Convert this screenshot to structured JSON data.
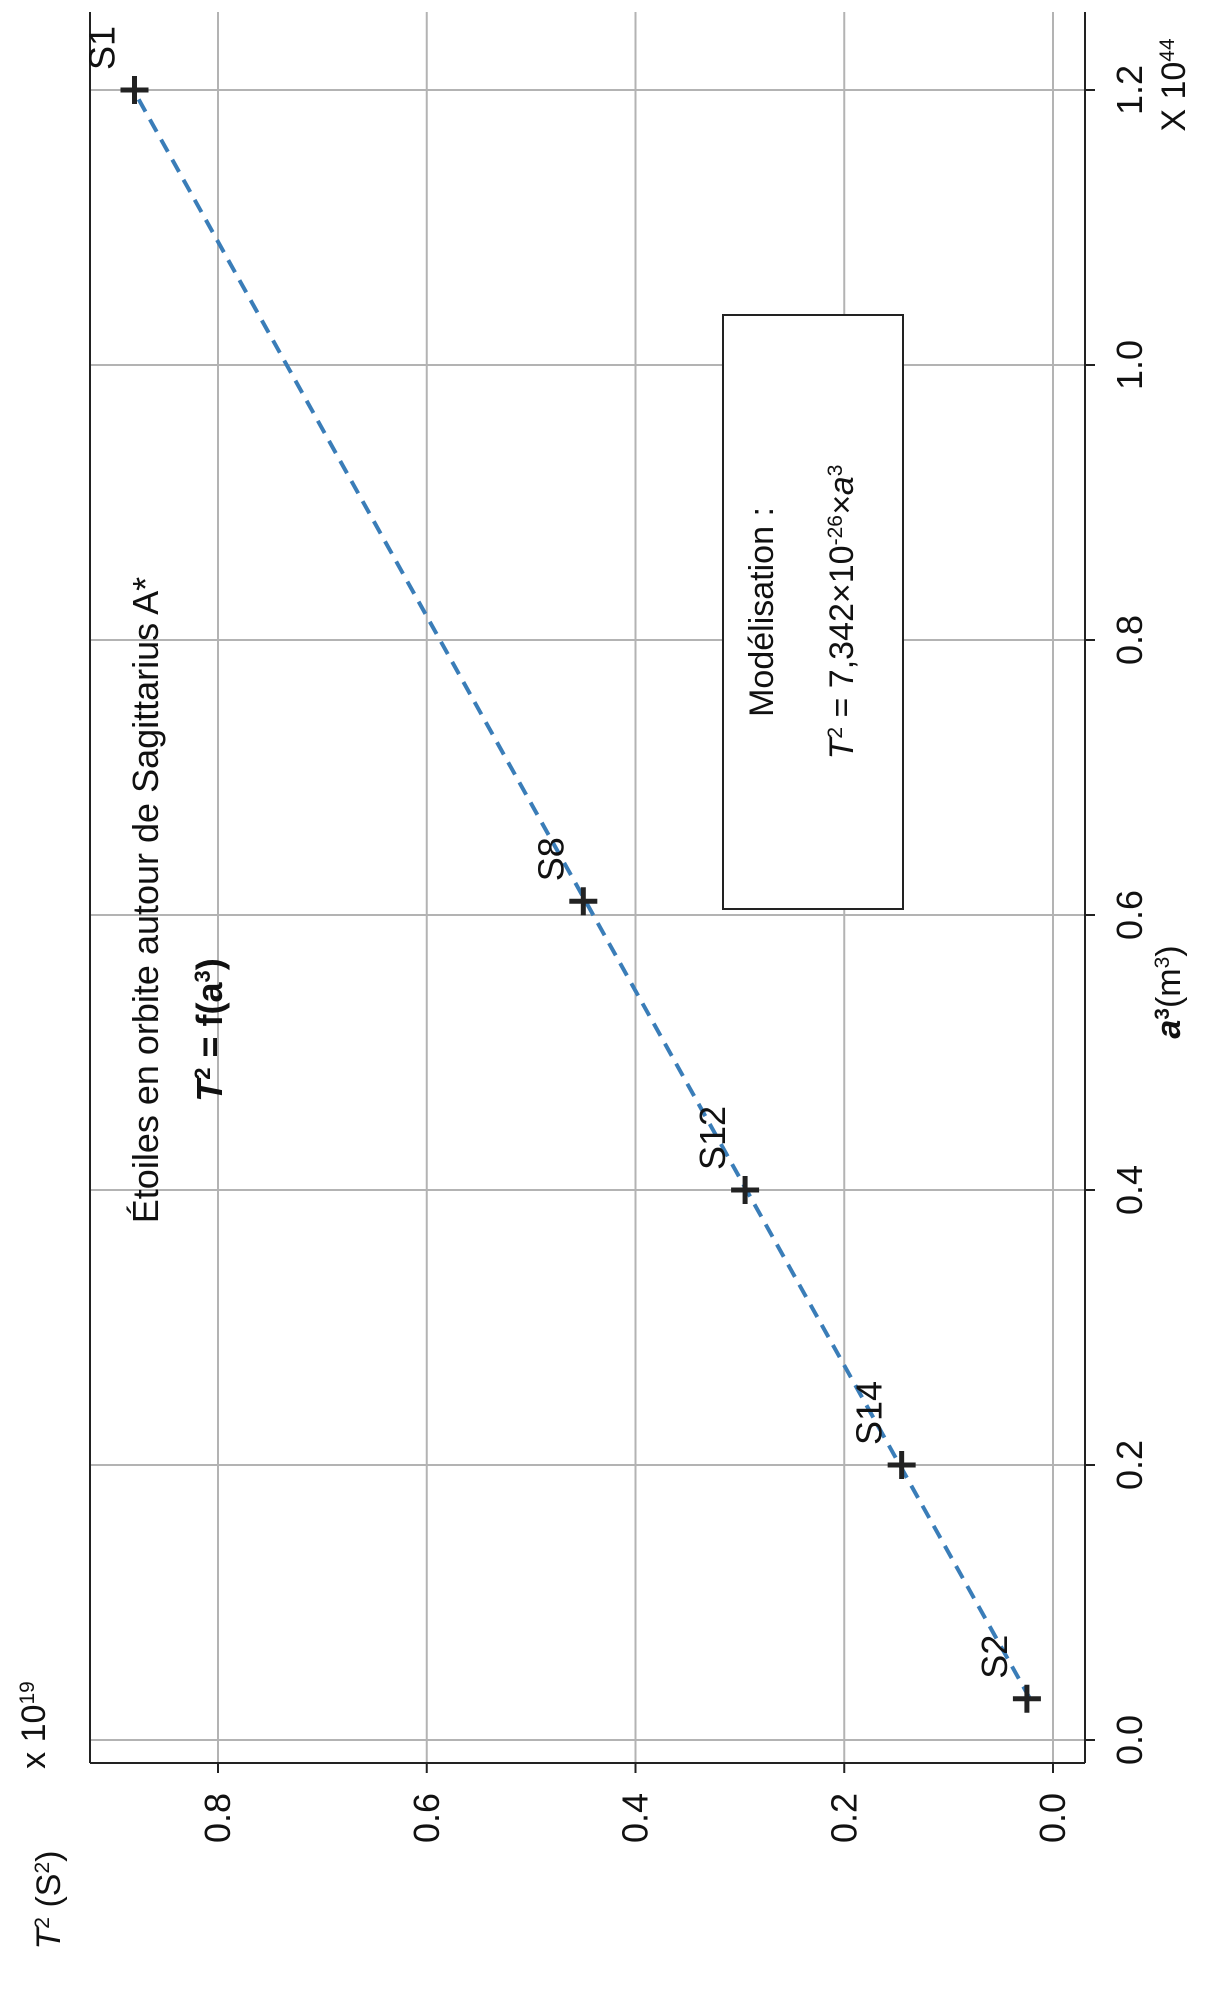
{
  "colors": {
    "grid": "#b3b3b3",
    "axis": "#222222",
    "fit_line": "#3a7db8",
    "marker": "#222222"
  },
  "chart_data": {
    "type": "scatter",
    "orientation": "rotated-90-counterclockwise",
    "title": "Étoiles en orbite autour de Sagittarius A*",
    "subtitle": {
      "main": "T",
      "sup": "2",
      "rest": " = f(a",
      "sup2": "3",
      "end": ")"
    },
    "xlabel": {
      "main": "a",
      "sup": "3",
      "rest": "(m",
      "sup2": "3",
      "end": ")"
    },
    "ylabel": {
      "main": "T",
      "sup": "2",
      "rest": " (S",
      "sup2": "2",
      "end": ")"
    },
    "x_scale_note": {
      "main": "X 10",
      "sup": "44"
    },
    "y_scale_note": {
      "main": "x 10",
      "sup": "19"
    },
    "x_ticks": [
      "0.0",
      "0.2",
      "0.4",
      "0.6",
      "0.8",
      "1.0",
      "1.2"
    ],
    "y_ticks": [
      "0.0",
      "0.2",
      "0.4",
      "0.6",
      "0.8"
    ],
    "xlim": [
      -0.005,
      1.25
    ],
    "ylim": [
      -0.01,
      0.95
    ],
    "grid": true,
    "multiplier_x": 1e+44,
    "multiplier_y": 1e+19,
    "series": [
      {
        "points": [
          {
            "label": "S2",
            "x": 0.03,
            "y": 0.025
          },
          {
            "label": "S14",
            "x": 0.2,
            "y": 0.145
          },
          {
            "label": "S12",
            "x": 0.4,
            "y": 0.295
          },
          {
            "label": "S8",
            "x": 0.61,
            "y": 0.45
          },
          {
            "label": "S1",
            "x": 1.2,
            "y": 0.88
          }
        ]
      }
    ],
    "fit_line": {
      "x": [
        0.03,
        1.2
      ],
      "y": [
        0.022,
        0.881
      ]
    },
    "model_box": {
      "line1": "Modélisation :",
      "line2": {
        "main": "T",
        "sup": "2",
        "rest": " = 7,342×10",
        "sup2": "-26",
        "end": "×a",
        "sup3": "3"
      }
    }
  }
}
